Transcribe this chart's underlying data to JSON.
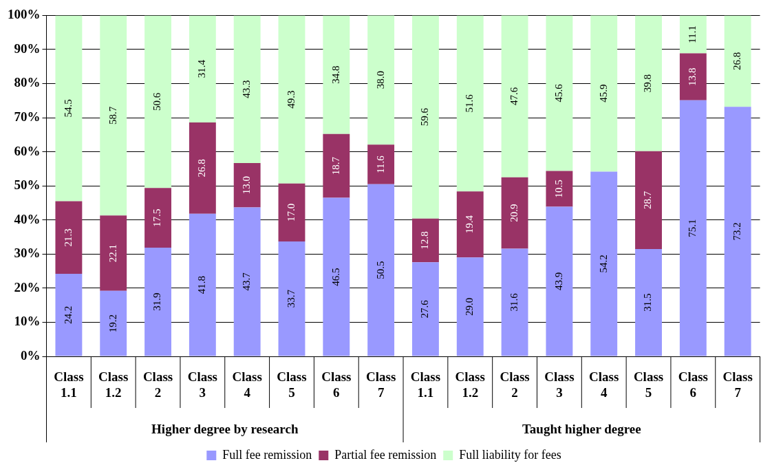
{
  "chart_data": {
    "type": "bar",
    "stacked": true,
    "categories": [
      "Class 1.1",
      "Class 1.2",
      "Class 2",
      "Class 3",
      "Class 4",
      "Class 5",
      "Class 6",
      "Class 7",
      "Class 1.1",
      "Class 1.2",
      "Class 2",
      "Class 3",
      "Class 4",
      "Class 5",
      "Class 6",
      "Class 7"
    ],
    "series": [
      {
        "name": "Full fee remission",
        "color": "#9999ff",
        "values": [
          24.2,
          19.2,
          31.9,
          41.8,
          43.7,
          33.7,
          46.5,
          50.5,
          27.6,
          29.0,
          31.6,
          43.9,
          54.2,
          31.5,
          75.1,
          73.2
        ],
        "value_labels": [
          "24.2",
          "19.2",
          "31.9",
          "41.8",
          "43.7",
          "33.7",
          "46.5",
          "50.5",
          "27.6",
          "29.0",
          "31.6",
          "43.9",
          "54.2",
          "31.5",
          "75.1",
          "73.2"
        ]
      },
      {
        "name": "Partial fee remission",
        "color": "#993366",
        "values": [
          21.3,
          22.1,
          17.5,
          26.8,
          13.0,
          17.0,
          18.7,
          11.6,
          12.8,
          19.4,
          20.9,
          10.5,
          null,
          28.7,
          13.8,
          null
        ],
        "value_labels": [
          "21.3",
          "22.1",
          "17.5",
          "26.8",
          "13.0",
          "17.0",
          "18.7",
          "11.6",
          "12.8",
          "19.4",
          "20.9",
          "10.5",
          null,
          "28.7",
          "13.8",
          null
        ]
      },
      {
        "name": "Full liability for fees",
        "color": "#ccffcc",
        "values": [
          54.5,
          58.7,
          50.6,
          31.4,
          43.3,
          49.3,
          34.8,
          38.0,
          59.6,
          51.6,
          47.6,
          45.6,
          45.9,
          39.8,
          11.1,
          26.8
        ],
        "value_labels": [
          "54.5",
          "58.7",
          "50.6",
          "31.4",
          "43.3",
          "49.3",
          "34.8",
          "38.0",
          "59.6",
          "51.6",
          "47.6",
          "45.6",
          "45.9",
          "39.8",
          "11.1",
          "26.8"
        ]
      }
    ],
    "ylim": [
      0,
      100
    ],
    "yticks": [
      {
        "value": 0,
        "label": "0%"
      },
      {
        "value": 10,
        "label": "10%"
      },
      {
        "value": 20,
        "label": "20%"
      },
      {
        "value": 30,
        "label": "30%"
      },
      {
        "value": 40,
        "label": "40%"
      },
      {
        "value": 50,
        "label": "50%"
      },
      {
        "value": 60,
        "label": "60%"
      },
      {
        "value": 70,
        "label": "70%"
      },
      {
        "value": 80,
        "label": "80%"
      },
      {
        "value": 90,
        "label": "90%"
      },
      {
        "value": 100,
        "label": "100%"
      }
    ],
    "annotations": [
      "Higher degree by research",
      "Taught higher degree"
    ],
    "grid": "y",
    "legend": "bottom"
  }
}
